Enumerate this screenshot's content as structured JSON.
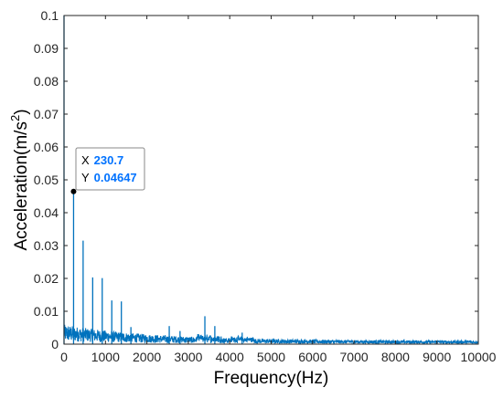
{
  "chart_data": {
    "type": "line",
    "xlabel": "Frequency(Hz)",
    "ylabel": "Acceleration(m/s",
    "ylabel_superscript": "2",
    "ylabel_close": ")",
    "xlim": [
      0,
      10000
    ],
    "ylim": [
      0,
      0.1
    ],
    "x_ticks": [
      0,
      1000,
      2000,
      3000,
      4000,
      5000,
      6000,
      7000,
      8000,
      9000,
      10000
    ],
    "x_tick_labels": [
      "0",
      "1000",
      "2000",
      "3000",
      "4000",
      "5000",
      "6000",
      "7000",
      "8000",
      "9000",
      "10000"
    ],
    "y_ticks": [
      0,
      0.01,
      0.02,
      0.03,
      0.04,
      0.05,
      0.06,
      0.07,
      0.08,
      0.09,
      0.1
    ],
    "y_tick_labels": [
      "0",
      "0.01",
      "0.02",
      "0.03",
      "0.04",
      "0.05",
      "0.06",
      "0.07",
      "0.08",
      "0.09",
      "0.1"
    ],
    "grid": false,
    "line_color": "#0072BD",
    "peaks": [
      {
        "x": 0,
        "y": 0.1
      },
      {
        "x": 230.7,
        "y": 0.04647
      },
      {
        "x": 461,
        "y": 0.0315
      },
      {
        "x": 692,
        "y": 0.0203
      },
      {
        "x": 922,
        "y": 0.0201
      },
      {
        "x": 1153,
        "y": 0.0133
      },
      {
        "x": 1384,
        "y": 0.013
      },
      {
        "x": 1615,
        "y": 0.0052
      },
      {
        "x": 2540,
        "y": 0.0055
      },
      {
        "x": 2800,
        "y": 0.004
      },
      {
        "x": 3400,
        "y": 0.0085
      },
      {
        "x": 3640,
        "y": 0.0055
      },
      {
        "x": 4300,
        "y": 0.0035
      }
    ],
    "datatip": {
      "x_label": "X",
      "x_value": "230.7",
      "y_label": "Y",
      "y_value": "0.04647",
      "value_color": "#0072FF"
    }
  }
}
